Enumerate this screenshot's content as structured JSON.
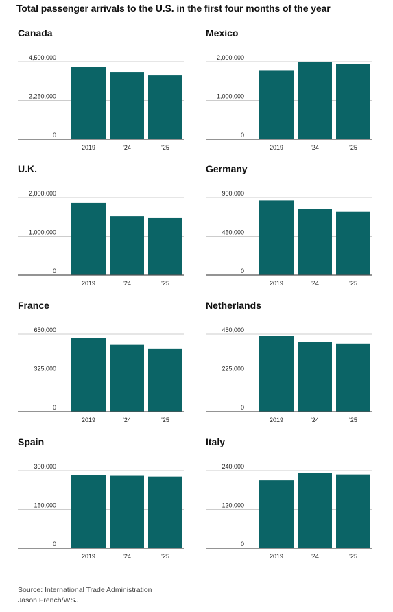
{
  "title": "Total passenger arrivals to the U.S. in the first four months of the year",
  "source_line": "Source: International Trade Administration",
  "credit_line": "Jason French/WSJ",
  "colors": {
    "bar": "#0b6466",
    "axis": "#555555",
    "grid": "#cccccc"
  },
  "chart_data": [
    {
      "type": "bar",
      "title": "Canada",
      "categories": [
        "2019",
        "'24",
        "'25"
      ],
      "values": [
        4200000,
        3900000,
        3700000
      ],
      "ylim": [
        0,
        4500000
      ],
      "yticks": [
        "4,500,000",
        "2,250,000",
        "0"
      ],
      "ytick_values": [
        4500000,
        2250000,
        0
      ]
    },
    {
      "type": "bar",
      "title": "Mexico",
      "categories": [
        "2019",
        "'24",
        "'25"
      ],
      "values": [
        1780000,
        1990000,
        1930000
      ],
      "ylim": [
        0,
        2000000
      ],
      "yticks": [
        "2,000,000",
        "1,000,000",
        "0"
      ],
      "ytick_values": [
        2000000,
        1000000,
        0
      ]
    },
    {
      "type": "bar",
      "title": "U.K.",
      "categories": [
        "2019",
        "'24",
        "'25"
      ],
      "values": [
        1860000,
        1520000,
        1470000
      ],
      "ylim": [
        0,
        2000000
      ],
      "yticks": [
        "2,000,000",
        "1,000,000",
        "0"
      ],
      "ytick_values": [
        2000000,
        1000000,
        0
      ]
    },
    {
      "type": "bar",
      "title": "Germany",
      "categories": [
        "2019",
        "'24",
        "'25"
      ],
      "values": [
        865000,
        770000,
        735000
      ],
      "ylim": [
        0,
        900000
      ],
      "yticks": [
        "900,000",
        "450,000",
        "0"
      ],
      "ytick_values": [
        900000,
        450000,
        0
      ]
    },
    {
      "type": "bar",
      "title": "France",
      "categories": [
        "2019",
        "'24",
        "'25"
      ],
      "values": [
        620000,
        560000,
        530000
      ],
      "ylim": [
        0,
        650000
      ],
      "yticks": [
        "650,000",
        "325,000",
        "0"
      ],
      "ytick_values": [
        650000,
        325000,
        0
      ]
    },
    {
      "type": "bar",
      "title": "Netherlands",
      "categories": [
        "2019",
        "'24",
        "'25"
      ],
      "values": [
        440000,
        405000,
        395000
      ],
      "ylim": [
        0,
        450000
      ],
      "yticks": [
        "450,000",
        "225,000",
        "0"
      ],
      "ytick_values": [
        450000,
        225000,
        0
      ]
    },
    {
      "type": "bar",
      "title": "Spain",
      "categories": [
        "2019",
        "'24",
        "'25"
      ],
      "values": [
        283000,
        280000,
        277000
      ],
      "ylim": [
        0,
        300000
      ],
      "yticks": [
        "300,000",
        "150,000",
        "0"
      ],
      "ytick_values": [
        300000,
        150000,
        0
      ]
    },
    {
      "type": "bar",
      "title": "Italy",
      "categories": [
        "2019",
        "'24",
        "'25"
      ],
      "values": [
        210000,
        232000,
        228000
      ],
      "ylim": [
        0,
        240000
      ],
      "yticks": [
        "240,000",
        "120,000",
        "0"
      ],
      "ytick_values": [
        240000,
        120000,
        0
      ]
    }
  ]
}
